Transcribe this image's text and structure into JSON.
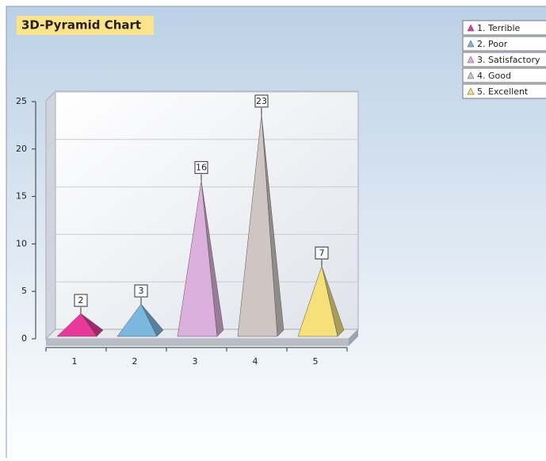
{
  "chart_data": {
    "type": "pyramid3d",
    "title": "3D-Pyramid Chart",
    "categories": [
      "1",
      "2",
      "3",
      "4",
      "5"
    ],
    "values": [
      2,
      3,
      16,
      23,
      7
    ],
    "colors": [
      "#e8389a",
      "#7ab8e0",
      "#dcb0dc",
      "#cfc6c4",
      "#f5e07a"
    ],
    "legend": [
      "1. Terrible",
      "2. Poor",
      "3. Satisfactory",
      "4. Good",
      "5. Excellent"
    ],
    "ylim": [
      0,
      25
    ],
    "yticks": [
      0,
      5,
      10,
      15,
      20,
      25
    ],
    "grid": true
  }
}
